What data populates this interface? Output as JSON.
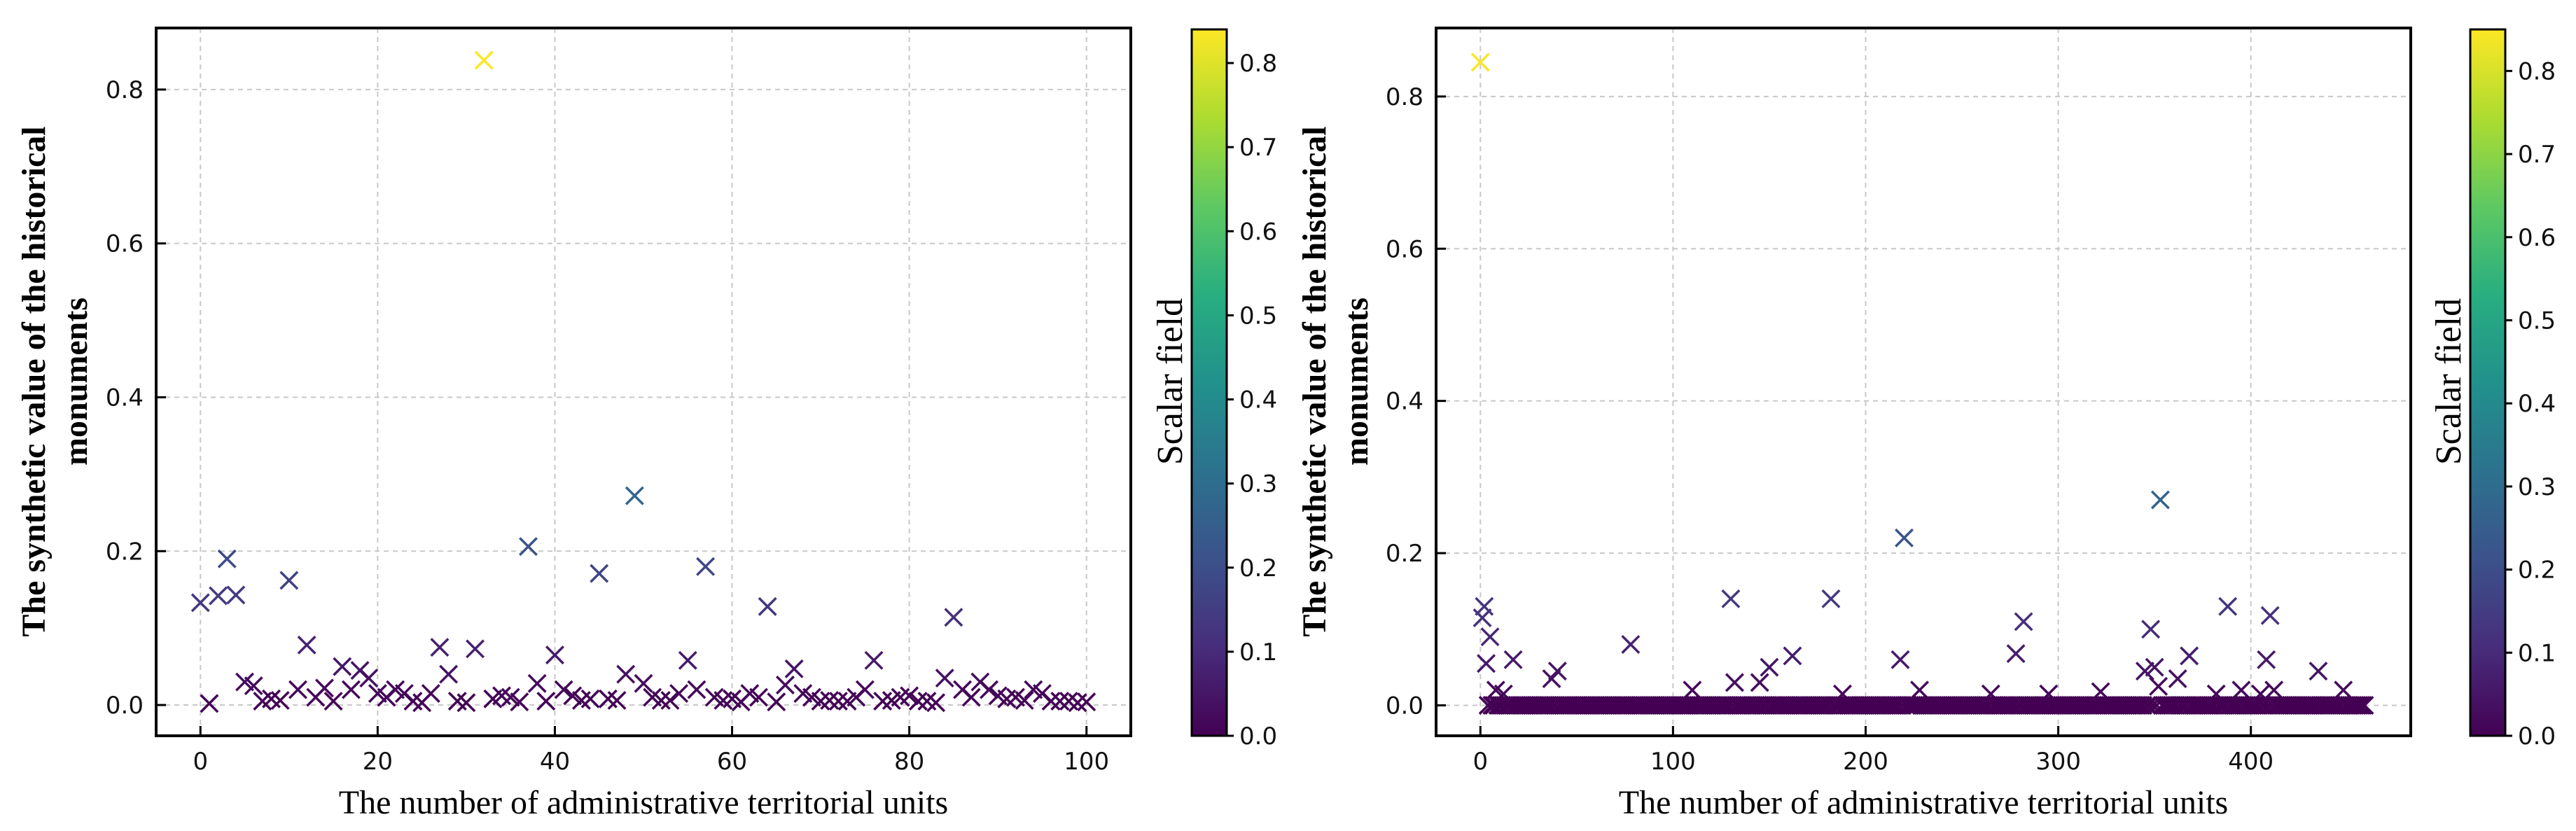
{
  "chart_data": [
    {
      "type": "scatter",
      "marker": "x",
      "colormap": "viridis",
      "xlabel": "The number of administrative territorial units",
      "ylabel": [
        "The synthetic value of the historical",
        "monuments"
      ],
      "colorbar_label": "Scalar field",
      "xlim": [
        -5,
        105
      ],
      "ylim": [
        -0.04,
        0.88
      ],
      "xticks": [
        0,
        20,
        40,
        60,
        80,
        100
      ],
      "yticks": [
        0.0,
        0.2,
        0.4,
        0.6,
        0.8
      ],
      "colorbar_ticks": [
        0.0,
        0.1,
        0.2,
        0.3,
        0.4,
        0.5,
        0.6,
        0.7,
        0.8
      ],
      "colorbar_range": [
        0.0,
        0.84
      ],
      "grid": true,
      "x": [
        0,
        1,
        2,
        3,
        4,
        5,
        6,
        7,
        8,
        9,
        10,
        11,
        12,
        13,
        14,
        15,
        16,
        17,
        18,
        19,
        20,
        21,
        22,
        23,
        24,
        25,
        26,
        27,
        28,
        29,
        30,
        31,
        32,
        33,
        34,
        35,
        36,
        37,
        38,
        39,
        40,
        41,
        42,
        43,
        44,
        45,
        46,
        47,
        48,
        49,
        50,
        51,
        52,
        53,
        54,
        55,
        56,
        57,
        58,
        59,
        60,
        61,
        62,
        63,
        64,
        65,
        66,
        67,
        68,
        69,
        70,
        71,
        72,
        73,
        74,
        75,
        76,
        77,
        78,
        79,
        80,
        81,
        82,
        83,
        84,
        85,
        86,
        87,
        88,
        89,
        90,
        91,
        92,
        93,
        94,
        95,
        96,
        97,
        98,
        99,
        100
      ],
      "y": [
        0.133,
        0.002,
        0.142,
        0.19,
        0.143,
        0.03,
        0.025,
        0.005,
        0.008,
        0.006,
        0.162,
        0.02,
        0.078,
        0.01,
        0.022,
        0.005,
        0.05,
        0.02,
        0.045,
        0.035,
        0.015,
        0.01,
        0.02,
        0.015,
        0.005,
        0.003,
        0.015,
        0.075,
        0.04,
        0.005,
        0.003,
        0.073,
        0.838,
        0.008,
        0.012,
        0.01,
        0.004,
        0.206,
        0.028,
        0.005,
        0.065,
        0.02,
        0.012,
        0.006,
        0.008,
        0.171,
        0.008,
        0.006,
        0.04,
        0.272,
        0.028,
        0.01,
        0.006,
        0.006,
        0.015,
        0.058,
        0.02,
        0.18,
        0.01,
        0.006,
        0.008,
        0.004,
        0.015,
        0.01,
        0.128,
        0.004,
        0.026,
        0.047,
        0.015,
        0.01,
        0.005,
        0.006,
        0.005,
        0.005,
        0.01,
        0.02,
        0.058,
        0.005,
        0.006,
        0.01,
        0.012,
        0.005,
        0.005,
        0.003,
        0.035,
        0.114,
        0.02,
        0.01,
        0.03,
        0.02,
        0.012,
        0.008,
        0.01,
        0.006,
        0.02,
        0.015,
        0.005,
        0.005,
        0.005,
        0.003,
        0.004
      ]
    },
    {
      "type": "scatter",
      "marker": "x",
      "colormap": "viridis",
      "xlabel": "The number of administrative territorial units",
      "ylabel": [
        "The synthetic value of the historical",
        "monuments"
      ],
      "colorbar_label": "Scalar field",
      "xlim": [
        -23,
        483
      ],
      "ylim": [
        -0.04,
        0.89
      ],
      "xticks": [
        0,
        100,
        200,
        300,
        400
      ],
      "yticks": [
        0.0,
        0.2,
        0.4,
        0.6,
        0.8
      ],
      "colorbar_ticks": [
        0.0,
        0.1,
        0.2,
        0.3,
        0.4,
        0.5,
        0.6,
        0.7,
        0.8
      ],
      "colorbar_range": [
        0.0,
        0.85
      ],
      "grid": true,
      "count": 460,
      "notable_points": [
        {
          "x": 0,
          "y": 0.845
        },
        {
          "x": 1,
          "y": 0.115
        },
        {
          "x": 2,
          "y": 0.13
        },
        {
          "x": 3,
          "y": 0.055
        },
        {
          "x": 5,
          "y": 0.09
        },
        {
          "x": 8,
          "y": 0.02
        },
        {
          "x": 12,
          "y": 0.015
        },
        {
          "x": 17,
          "y": 0.06
        },
        {
          "x": 37,
          "y": 0.035
        },
        {
          "x": 40,
          "y": 0.045
        },
        {
          "x": 78,
          "y": 0.08
        },
        {
          "x": 110,
          "y": 0.02
        },
        {
          "x": 130,
          "y": 0.14
        },
        {
          "x": 132,
          "y": 0.03
        },
        {
          "x": 145,
          "y": 0.03
        },
        {
          "x": 150,
          "y": 0.05
        },
        {
          "x": 162,
          "y": 0.065
        },
        {
          "x": 182,
          "y": 0.14
        },
        {
          "x": 188,
          "y": 0.015
        },
        {
          "x": 218,
          "y": 0.06
        },
        {
          "x": 220,
          "y": 0.22
        },
        {
          "x": 228,
          "y": 0.02
        },
        {
          "x": 265,
          "y": 0.015
        },
        {
          "x": 278,
          "y": 0.068
        },
        {
          "x": 282,
          "y": 0.11
        },
        {
          "x": 295,
          "y": 0.015
        },
        {
          "x": 322,
          "y": 0.018
        },
        {
          "x": 345,
          "y": 0.045
        },
        {
          "x": 348,
          "y": 0.1
        },
        {
          "x": 350,
          "y": 0.05
        },
        {
          "x": 352,
          "y": 0.025
        },
        {
          "x": 353,
          "y": 0.27
        },
        {
          "x": 362,
          "y": 0.035
        },
        {
          "x": 368,
          "y": 0.065
        },
        {
          "x": 382,
          "y": 0.015
        },
        {
          "x": 388,
          "y": 0.13
        },
        {
          "x": 395,
          "y": 0.02
        },
        {
          "x": 405,
          "y": 0.015
        },
        {
          "x": 408,
          "y": 0.06
        },
        {
          "x": 410,
          "y": 0.118
        },
        {
          "x": 412,
          "y": 0.02
        },
        {
          "x": 435,
          "y": 0.045
        },
        {
          "x": 448,
          "y": 0.02
        }
      ],
      "baseline_y": 0.0
    }
  ]
}
